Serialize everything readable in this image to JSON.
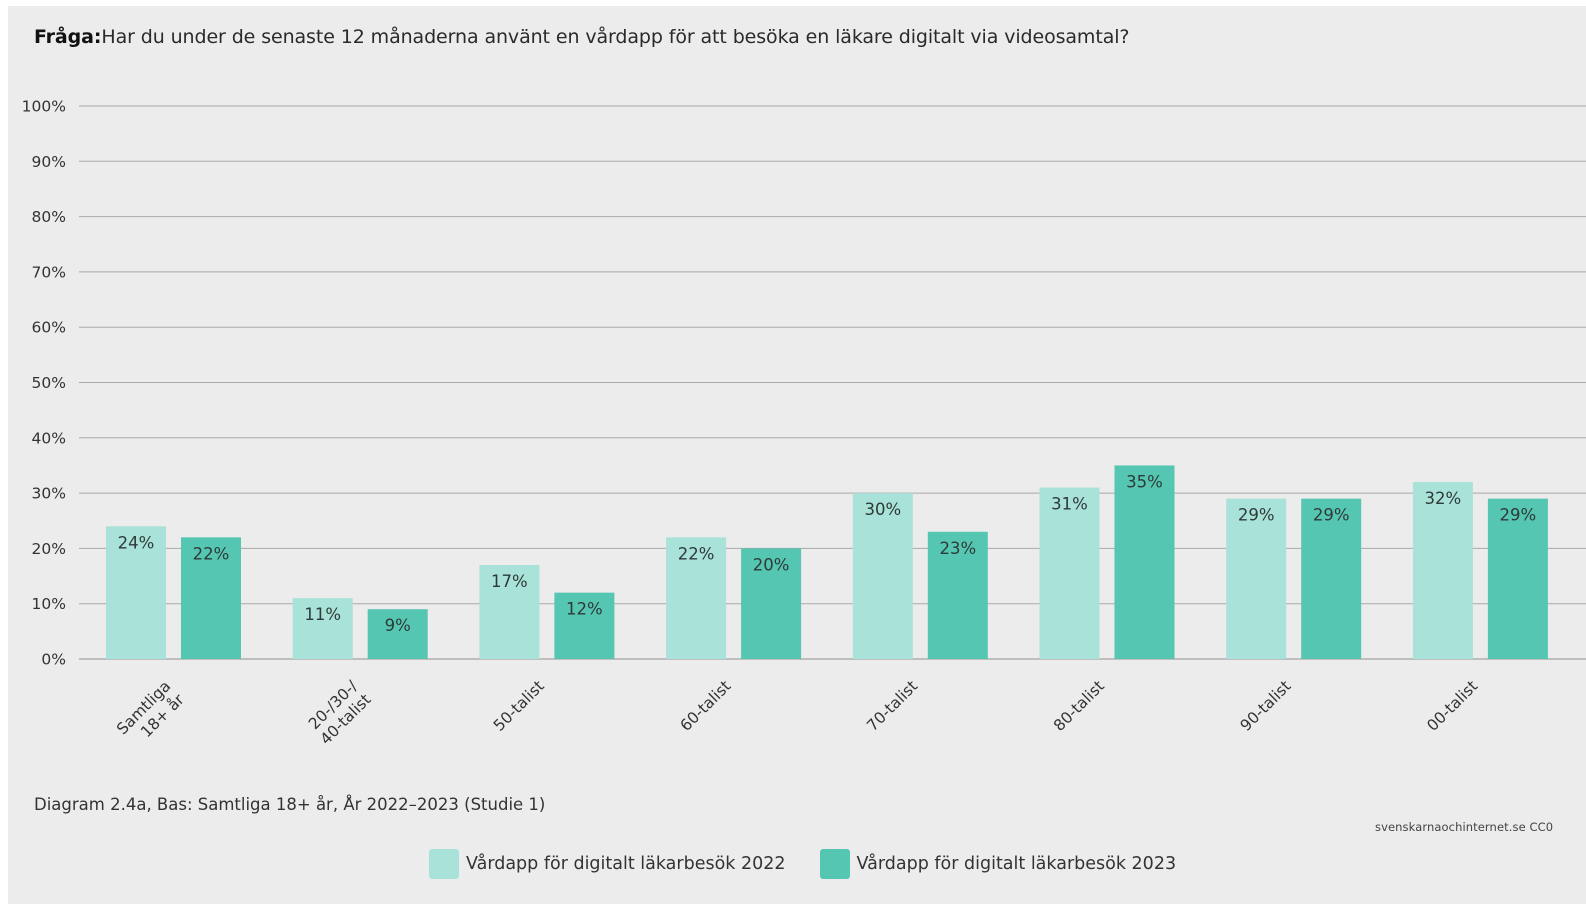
{
  "header": {
    "question_label": "Fråga:",
    "question_text": "Har du under de senaste 12 månaderna använt en vårdapp för att besöka en läkare digitalt via videosamtal?"
  },
  "footer": {
    "caption": "Diagram 2.4a, Bas: Samtliga 18+ år, År 2022–2023 (Studie 1)",
    "credit": "svenskarnaochinternet.se CC0"
  },
  "colors": {
    "panel": "#ececec",
    "grid": "#a9a9a9",
    "series_2022": "#a8e2d8",
    "series_2023": "#55c6b2"
  },
  "chart_data": {
    "type": "bar",
    "title": "",
    "xlabel": "",
    "ylabel": "",
    "ylim": [
      0,
      100
    ],
    "yticks": [
      "0%",
      "10%",
      "20%",
      "30%",
      "40%",
      "50%",
      "60%",
      "70%",
      "80%",
      "90%",
      "100%"
    ],
    "categories": [
      [
        "Samtliga",
        "18+ år"
      ],
      [
        "20-/30-/",
        "40-talist"
      ],
      [
        "50-talist"
      ],
      [
        "60-talist"
      ],
      [
        "70-talist"
      ],
      [
        "80-talist"
      ],
      [
        "90-talist"
      ],
      [
        "00-talist"
      ]
    ],
    "series": [
      {
        "name": "Vårdapp för digitalt läkarbesök 2022",
        "color": "#a8e2d8",
        "values": [
          24,
          11,
          17,
          22,
          30,
          31,
          29,
          32
        ],
        "labels": [
          "24%",
          "11%",
          "17%",
          "22%",
          "30%",
          "31%",
          "29%",
          "32%"
        ]
      },
      {
        "name": "Vårdapp för digitalt läkarbesök 2023",
        "color": "#55c6b2",
        "values": [
          22,
          9,
          12,
          20,
          23,
          35,
          29,
          29
        ],
        "labels": [
          "22%",
          "9%",
          "12%",
          "20%",
          "23%",
          "35%",
          "29%",
          "29%"
        ]
      }
    ],
    "grid": true,
    "legend_position": "bottom-center"
  }
}
